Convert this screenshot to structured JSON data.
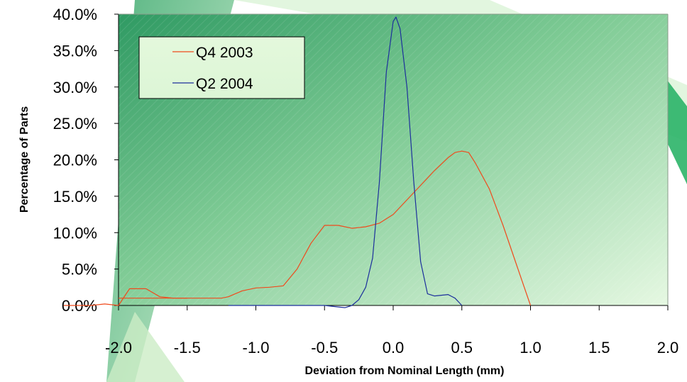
{
  "chart_data": {
    "type": "line",
    "title": "",
    "xlabel": "Deviation from Nominal Length (mm)",
    "ylabel": "Percentage of  Parts",
    "xlim": [
      -2.0,
      2.0
    ],
    "ylim": [
      0,
      40
    ],
    "x_ticks": [
      "-2.0",
      "-1.5",
      "-1.0",
      "-0.5",
      "0.0",
      "0.5",
      "1.0",
      "1.5",
      "2.0"
    ],
    "y_ticks": [
      "0.0%",
      "5.0%",
      "10.0%",
      "15.0%",
      "20.0%",
      "25.0%",
      "30.0%",
      "35.0%",
      "40.0%"
    ],
    "legend_position": "top-left",
    "grid": false,
    "series": [
      {
        "name": "Q4 2003",
        "color": "#f04a1c",
        "x": [
          -2.0,
          -1.75,
          -1.5,
          -1.25,
          -1.2,
          -1.1,
          -1.0,
          -0.9,
          -0.8,
          -0.7,
          -0.6,
          -0.5,
          -0.4,
          -0.3,
          -0.2,
          -0.1,
          0.0,
          0.1,
          0.2,
          0.3,
          0.4,
          0.45,
          0.5,
          0.55,
          0.6,
          0.7,
          0.8,
          0.9,
          1.0
        ],
        "values": [
          1.0,
          1.0,
          1.0,
          1.0,
          1.2,
          2.0,
          2.4,
          2.5,
          2.7,
          5.0,
          8.5,
          11.0,
          11.0,
          10.6,
          10.8,
          11.3,
          12.5,
          14.5,
          16.5,
          18.5,
          20.3,
          21.0,
          21.2,
          21.0,
          19.5,
          16.0,
          11.0,
          5.5,
          0.0
        ]
      },
      {
        "name": "Q2 2004",
        "color": "#1c2f9c",
        "x": [
          -1.2,
          -0.5,
          -0.4,
          -0.35,
          -0.3,
          -0.25,
          -0.2,
          -0.15,
          -0.1,
          -0.05,
          0.0,
          0.02,
          0.05,
          0.1,
          0.15,
          0.2,
          0.25,
          0.3,
          0.35,
          0.4,
          0.45,
          0.5
        ],
        "values": [
          0.0,
          0.0,
          -0.2,
          -0.3,
          0.0,
          0.8,
          2.5,
          6.5,
          17.0,
          32.0,
          39.0,
          39.6,
          38.0,
          30.0,
          17.0,
          6.0,
          1.6,
          1.3,
          1.4,
          1.5,
          1.0,
          0.0
        ]
      }
    ],
    "outside_fragments": [
      {
        "note_series": "Q4 2003",
        "x": [
          -2.4,
          -2.3,
          -2.2,
          -2.1,
          -2.0
        ],
        "values": [
          0.0,
          0.0,
          0.0,
          0.2,
          0.0
        ]
      },
      {
        "note_series": "Q4 2003",
        "x": [
          -2.0,
          -1.92,
          -1.8,
          -1.7,
          -1.6,
          -1.5
        ],
        "values": [
          0.0,
          2.3,
          2.3,
          1.2,
          1.0,
          1.0
        ]
      }
    ]
  }
}
